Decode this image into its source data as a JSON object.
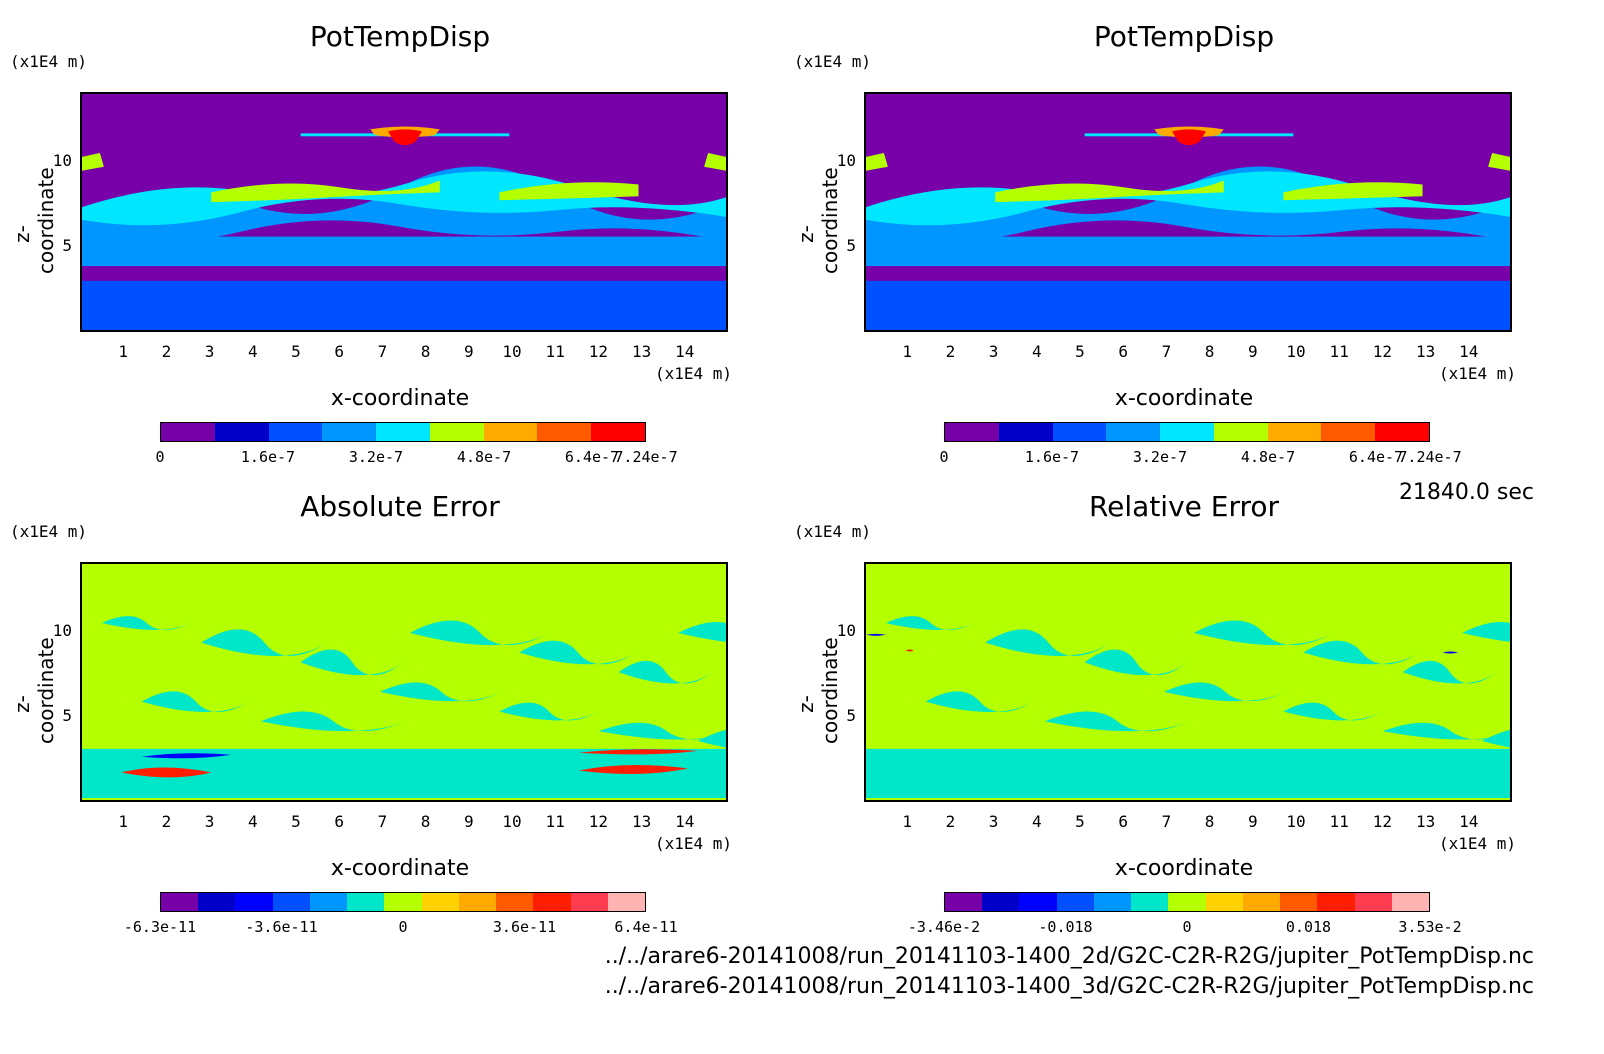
{
  "time_label": "21840.0 sec",
  "file_paths": [
    "../../arare6-20141008/run_20141103-1400_2d/G2C-C2R-R2G/jupiter_PotTempDisp.nc",
    "../../arare6-20141008/run_20141103-1400_3d/G2C-C2R-R2G/jupiter_PotTempDisp.nc"
  ],
  "chart_data": [
    {
      "type": "heatmap",
      "title": "PotTempDisp",
      "xlabel": "x-coordinate",
      "ylabel": "z-coordinate",
      "x_unit": "(x1E4 m)",
      "y_unit": "(x1E4 m)",
      "xticks": [
        "1",
        "2",
        "3",
        "4",
        "5",
        "6",
        "7",
        "8",
        "9",
        "10",
        "11",
        "12",
        "13",
        "14"
      ],
      "yticks": [
        "5",
        "10"
      ],
      "xlim": [
        0,
        15
      ],
      "ylim": [
        0,
        14
      ],
      "colorbar": {
        "colors": [
          "#7700a8",
          "#0000c8",
          "#0050ff",
          "#0096ff",
          "#00e6ff",
          "#b4ff00",
          "#ffaa00",
          "#ff5a00",
          "#ff0000"
        ],
        "tick_labels": [
          "0",
          "1.6e-7",
          "3.2e-7",
          "4.8e-7",
          "6.4e-7",
          "7.24e-7"
        ],
        "range": [
          0,
          7.24e-07
        ]
      }
    },
    {
      "type": "heatmap",
      "title": "PotTempDisp",
      "xlabel": "x-coordinate",
      "ylabel": "z-coordinate",
      "x_unit": "(x1E4 m)",
      "y_unit": "(x1E4 m)",
      "xticks": [
        "1",
        "2",
        "3",
        "4",
        "5",
        "6",
        "7",
        "8",
        "9",
        "10",
        "11",
        "12",
        "13",
        "14"
      ],
      "yticks": [
        "5",
        "10"
      ],
      "xlim": [
        0,
        15
      ],
      "ylim": [
        0,
        14
      ],
      "colorbar": {
        "colors": [
          "#7700a8",
          "#0000c8",
          "#0050ff",
          "#0096ff",
          "#00e6ff",
          "#b4ff00",
          "#ffaa00",
          "#ff5a00",
          "#ff0000"
        ],
        "tick_labels": [
          "0",
          "1.6e-7",
          "3.2e-7",
          "4.8e-7",
          "6.4e-7",
          "7.24e-7"
        ],
        "range": [
          0,
          7.24e-07
        ]
      }
    },
    {
      "type": "heatmap",
      "title": "Absolute Error",
      "xlabel": "x-coordinate",
      "ylabel": "z-coordinate",
      "x_unit": "(x1E4 m)",
      "y_unit": "(x1E4 m)",
      "xticks": [
        "1",
        "2",
        "3",
        "4",
        "5",
        "6",
        "7",
        "8",
        "9",
        "10",
        "11",
        "12",
        "13",
        "14"
      ],
      "yticks": [
        "5",
        "10"
      ],
      "xlim": [
        0,
        15
      ],
      "ylim": [
        0,
        14
      ],
      "colorbar": {
        "colors": [
          "#7700a8",
          "#0000c8",
          "#0000ff",
          "#0050ff",
          "#0096ff",
          "#00e6c8",
          "#b4ff00",
          "#ffd200",
          "#ffaa00",
          "#ff5a00",
          "#ff1e00",
          "#ff3c50",
          "#ffb4b4"
        ],
        "tick_labels": [
          "-6.3e-11",
          "-3.6e-11",
          "0",
          "3.6e-11",
          "6.4e-11"
        ],
        "range": [
          -6.3e-11,
          6.4e-11
        ]
      }
    },
    {
      "type": "heatmap",
      "title": "Relative Error",
      "xlabel": "x-coordinate",
      "ylabel": "z-coordinate",
      "x_unit": "(x1E4 m)",
      "y_unit": "(x1E4 m)",
      "xticks": [
        "1",
        "2",
        "3",
        "4",
        "5",
        "6",
        "7",
        "8",
        "9",
        "10",
        "11",
        "12",
        "13",
        "14"
      ],
      "yticks": [
        "5",
        "10"
      ],
      "xlim": [
        0,
        15
      ],
      "ylim": [
        0,
        14
      ],
      "colorbar": {
        "colors": [
          "#7700a8",
          "#0000c8",
          "#0000ff",
          "#0050ff",
          "#0096ff",
          "#00e6c8",
          "#b4ff00",
          "#ffd200",
          "#ffaa00",
          "#ff5a00",
          "#ff1e00",
          "#ff3c50",
          "#ffb4b4"
        ],
        "tick_labels": [
          "-3.46e-2",
          "-0.018",
          "0",
          "0.018",
          "3.53e-2"
        ],
        "range": [
          -0.0346,
          0.0353
        ]
      }
    }
  ]
}
